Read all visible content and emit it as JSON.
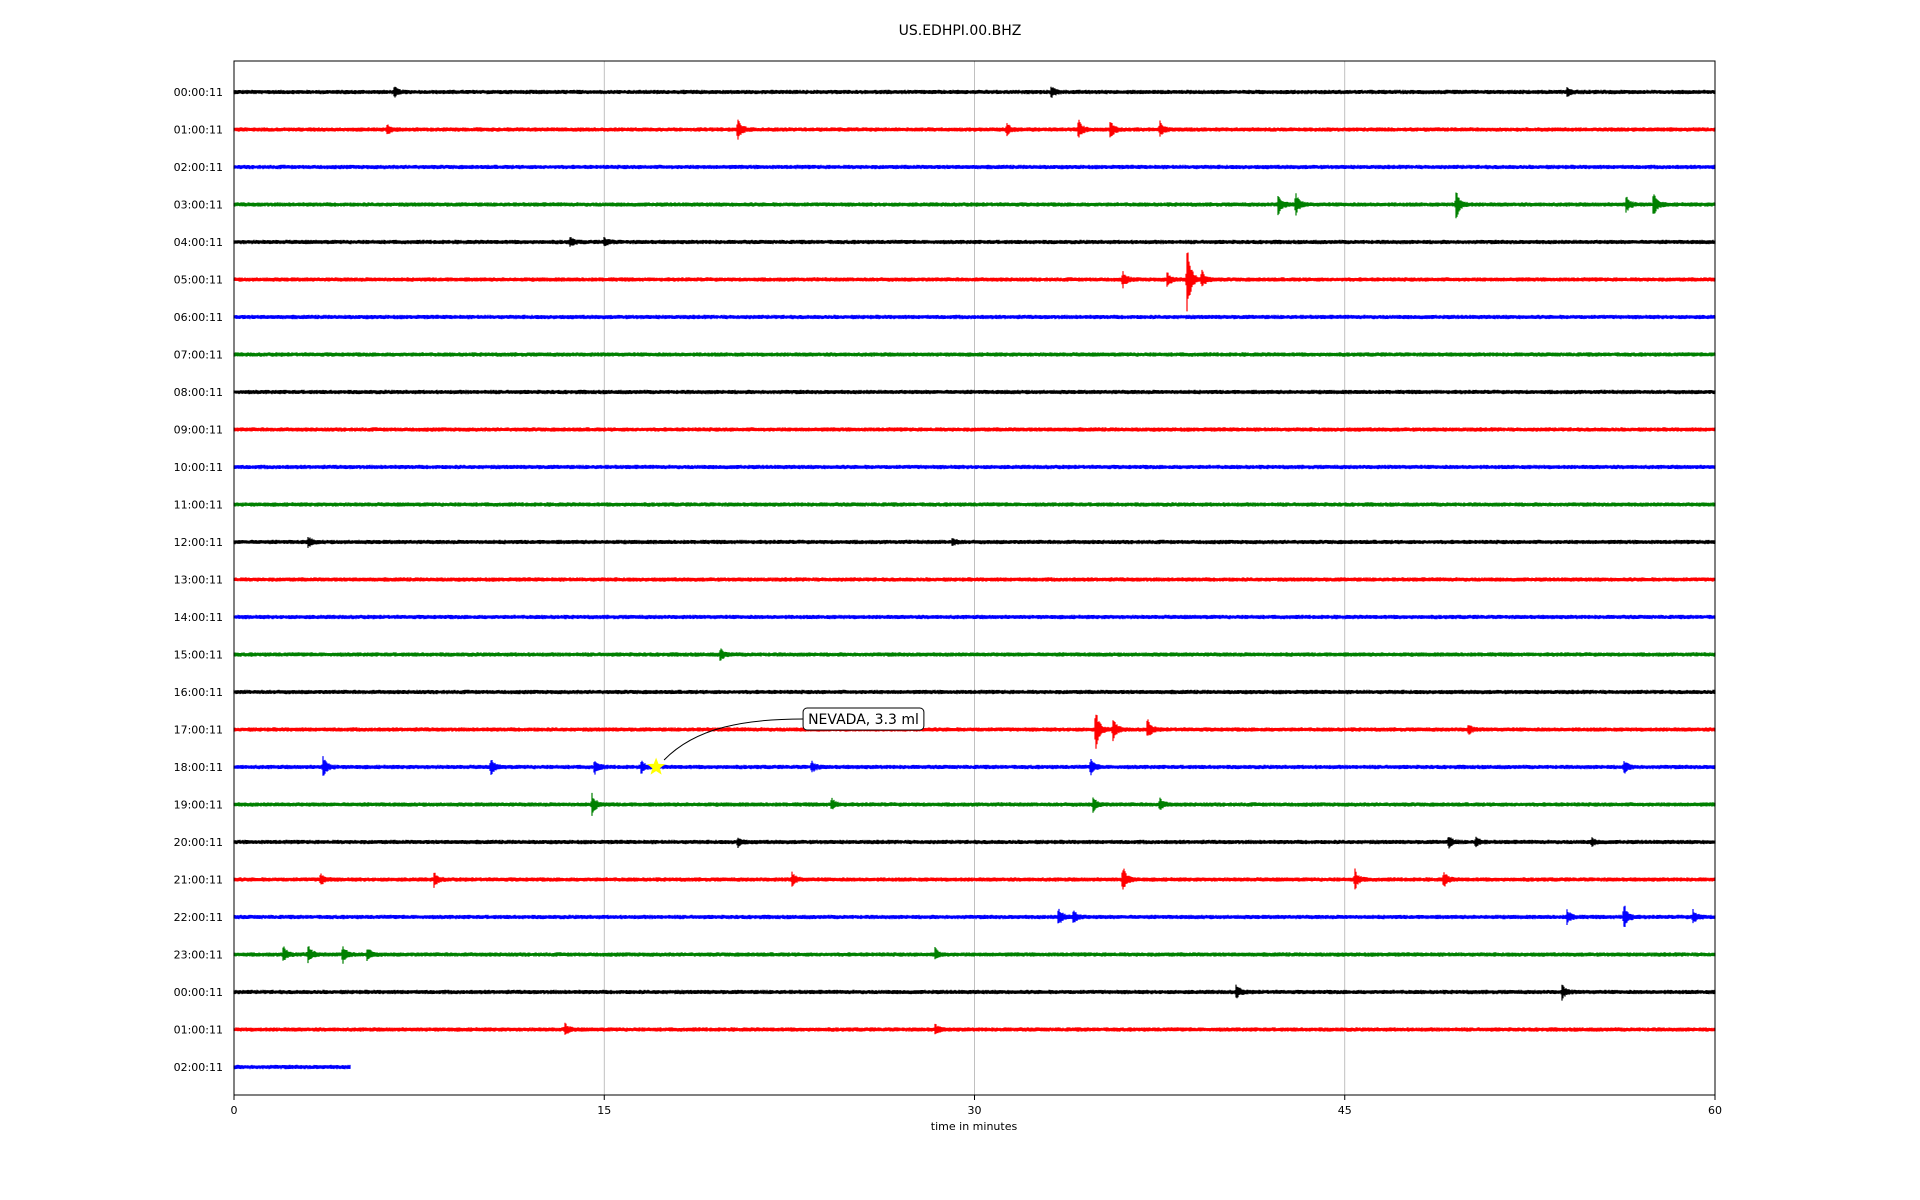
{
  "chart_data": {
    "type": "line",
    "title": "US.EDHPI.00.BHZ",
    "xlabel": "time in minutes",
    "ylabel": "",
    "xlim": [
      0,
      60
    ],
    "x_ticks": [
      "0",
      "15",
      "30",
      "45",
      "60"
    ],
    "x_tick_values": [
      0,
      15,
      30,
      45,
      60
    ],
    "grid": "vertical",
    "color_cycle": [
      "#000000",
      "#ff0000",
      "#0000ff",
      "#008000"
    ],
    "rows": [
      {
        "label": "00:00:11",
        "end": 60,
        "events": [
          {
            "t": 33.1,
            "a": 0.25
          },
          {
            "t": 54.0,
            "a": 0.2
          },
          {
            "t": 6.5,
            "a": 0.2
          }
        ]
      },
      {
        "label": "01:00:11",
        "end": 60,
        "events": [
          {
            "t": 20.4,
            "a": 0.5
          },
          {
            "t": 34.2,
            "a": 0.45
          },
          {
            "t": 35.5,
            "a": 0.4
          },
          {
            "t": 37.5,
            "a": 0.35
          },
          {
            "t": 31.3,
            "a": 0.25
          },
          {
            "t": 6.2,
            "a": 0.2
          }
        ]
      },
      {
        "label": "02:00:11",
        "end": 60,
        "events": []
      },
      {
        "label": "03:00:11",
        "end": 60,
        "events": [
          {
            "t": 42.3,
            "a": 0.45
          },
          {
            "t": 43.0,
            "a": 0.5
          },
          {
            "t": 49.5,
            "a": 0.7
          },
          {
            "t": 56.4,
            "a": 0.35
          },
          {
            "t": 57.5,
            "a": 0.55
          }
        ]
      },
      {
        "label": "04:00:11",
        "end": 60,
        "events": [
          {
            "t": 13.6,
            "a": 0.2
          },
          {
            "t": 15.0,
            "a": 0.2
          }
        ]
      },
      {
        "label": "05:00:11",
        "end": 60,
        "events": [
          {
            "t": 38.6,
            "a": 1.8
          },
          {
            "t": 36.0,
            "a": 0.35
          },
          {
            "t": 37.8,
            "a": 0.3
          },
          {
            "t": 39.2,
            "a": 0.4
          }
        ]
      },
      {
        "label": "06:00:11",
        "end": 60,
        "events": []
      },
      {
        "label": "07:00:11",
        "end": 60,
        "events": []
      },
      {
        "label": "08:00:11",
        "end": 60,
        "events": []
      },
      {
        "label": "09:00:11",
        "end": 60,
        "events": []
      },
      {
        "label": "10:00:11",
        "end": 60,
        "events": []
      },
      {
        "label": "11:00:11",
        "end": 60,
        "events": []
      },
      {
        "label": "12:00:11",
        "end": 60,
        "events": [
          {
            "t": 3.0,
            "a": 0.2
          },
          {
            "t": 29.1,
            "a": 0.15
          }
        ]
      },
      {
        "label": "13:00:11",
        "end": 60,
        "events": []
      },
      {
        "label": "14:00:11",
        "end": 60,
        "events": []
      },
      {
        "label": "15:00:11",
        "end": 60,
        "events": [
          {
            "t": 19.7,
            "a": 0.25
          }
        ]
      },
      {
        "label": "16:00:11",
        "end": 60,
        "events": []
      },
      {
        "label": "17:00:11",
        "end": 60,
        "events": [
          {
            "t": 34.9,
            "a": 0.95
          },
          {
            "t": 35.6,
            "a": 0.5
          },
          {
            "t": 37.0,
            "a": 0.45
          },
          {
            "t": 50.0,
            "a": 0.2
          }
        ]
      },
      {
        "label": "18:00:11",
        "end": 60,
        "events": [
          {
            "t": 3.6,
            "a": 0.5
          },
          {
            "t": 10.4,
            "a": 0.35
          },
          {
            "t": 14.6,
            "a": 0.3
          },
          {
            "t": 16.5,
            "a": 0.25
          },
          {
            "t": 23.4,
            "a": 0.25
          },
          {
            "t": 34.7,
            "a": 0.35
          },
          {
            "t": 56.3,
            "a": 0.3
          }
        ]
      },
      {
        "label": "19:00:11",
        "end": 60,
        "events": [
          {
            "t": 14.5,
            "a": 0.45
          },
          {
            "t": 24.2,
            "a": 0.25
          },
          {
            "t": 34.8,
            "a": 0.3
          },
          {
            "t": 37.5,
            "a": 0.25
          }
        ]
      },
      {
        "label": "20:00:11",
        "end": 60,
        "events": [
          {
            "t": 20.4,
            "a": 0.2
          },
          {
            "t": 49.2,
            "a": 0.25
          },
          {
            "t": 50.3,
            "a": 0.2
          },
          {
            "t": 55.0,
            "a": 0.15
          }
        ]
      },
      {
        "label": "21:00:11",
        "end": 60,
        "events": [
          {
            "t": 3.5,
            "a": 0.25
          },
          {
            "t": 8.1,
            "a": 0.3
          },
          {
            "t": 22.6,
            "a": 0.3
          },
          {
            "t": 36.0,
            "a": 0.65
          },
          {
            "t": 45.4,
            "a": 0.45
          },
          {
            "t": 49.0,
            "a": 0.35
          }
        ]
      },
      {
        "label": "22:00:11",
        "end": 60,
        "events": [
          {
            "t": 33.4,
            "a": 0.4
          },
          {
            "t": 34.0,
            "a": 0.3
          },
          {
            "t": 54.0,
            "a": 0.3
          },
          {
            "t": 56.3,
            "a": 0.65
          },
          {
            "t": 59.1,
            "a": 0.3
          }
        ]
      },
      {
        "label": "23:00:11",
        "end": 60,
        "events": [
          {
            "t": 2.0,
            "a": 0.35
          },
          {
            "t": 3.0,
            "a": 0.4
          },
          {
            "t": 4.4,
            "a": 0.45
          },
          {
            "t": 5.4,
            "a": 0.3
          },
          {
            "t": 28.4,
            "a": 0.25
          }
        ]
      },
      {
        "label": "00:00:11",
        "end": 60,
        "events": [
          {
            "t": 40.6,
            "a": 0.3
          },
          {
            "t": 53.8,
            "a": 0.3
          }
        ]
      },
      {
        "label": "01:00:11",
        "end": 60,
        "events": [
          {
            "t": 13.4,
            "a": 0.25
          },
          {
            "t": 28.4,
            "a": 0.2
          }
        ]
      },
      {
        "label": "02:00:11",
        "end": 4.7,
        "events": []
      }
    ],
    "annotations": [
      {
        "text": "NEVADA, 3.3 ml",
        "row": 18,
        "t": 17.1,
        "marker": "star",
        "marker_color": "#ffff00"
      }
    ]
  }
}
